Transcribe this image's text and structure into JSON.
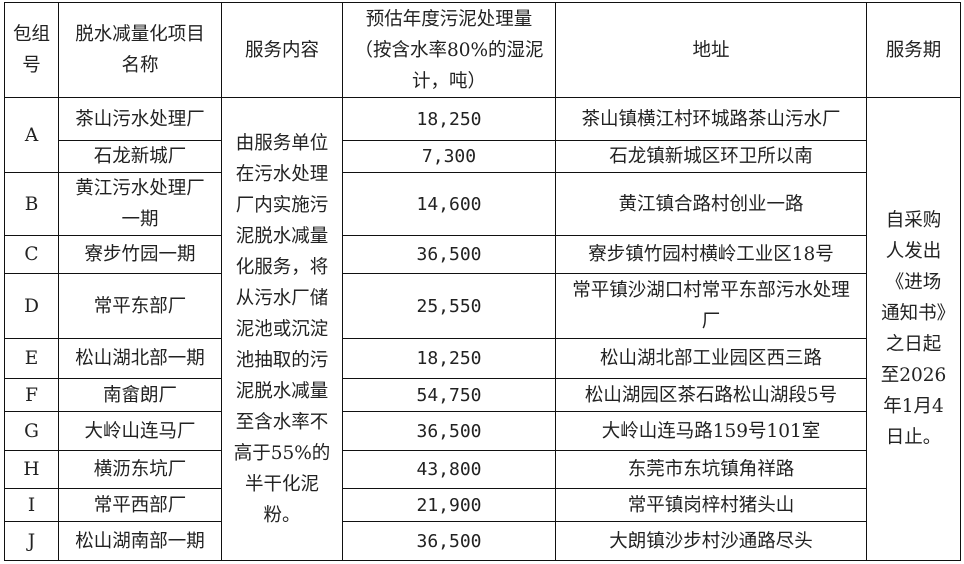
{
  "headers": {
    "group": "包组号",
    "project": "脱水减量化项目名称",
    "service": "服务内容",
    "volume": "预估年度污泥处理量（按含水率80%的湿泥计，吨）",
    "address": "地址",
    "period": "服务期"
  },
  "service_content": "由服务单位在污水处理厂内实施污泥脱水减量化服务，将从污水厂储泥池或沉淀池抽取的污泥脱水减量至含水率不高于55%的半干化泥粉。",
  "service_period": "自采购人发出《进场通知书》之日起至2026年1月4日止。",
  "rows": [
    {
      "group": "A",
      "project": "茶山污水处理厂",
      "volume": "18,250",
      "address": "茶山镇横江村环城路茶山污水厂"
    },
    {
      "group": "",
      "project": "石龙新城厂",
      "volume": "7,300",
      "address": "石龙镇新城区环卫所以南"
    },
    {
      "group": "B",
      "project": "黄江污水处理厂一期",
      "volume": "14,600",
      "address": "黄江镇合路村创业一路"
    },
    {
      "group": "C",
      "project": "寮步竹园一期",
      "volume": "36,500",
      "address": "寮步镇竹园村横岭工业区18号"
    },
    {
      "group": "D",
      "project": "常平东部厂",
      "volume": "25,550",
      "address": "常平镇沙湖口村常平东部污水处理厂"
    },
    {
      "group": "E",
      "project": "松山湖北部一期",
      "volume": "18,250",
      "address": "松山湖北部工业园区西三路"
    },
    {
      "group": "F",
      "project": "南畲朗厂",
      "volume": "54,750",
      "address": "松山湖园区茶石路松山湖段5号"
    },
    {
      "group": "G",
      "project": "大岭山连马厂",
      "volume": "36,500",
      "address": "大岭山连马路159号101室"
    },
    {
      "group": "H",
      "project": "横沥东坑厂",
      "volume": "43,800",
      "address": "东莞市东坑镇角祥路"
    },
    {
      "group": "I",
      "project": "常平西部厂",
      "volume": "21,900",
      "address": "常平镇岗梓村猪头山"
    },
    {
      "group": "J",
      "project": "松山湖南部一期",
      "volume": "36,500",
      "address": "大朗镇沙步村沙通路尽头"
    }
  ]
}
